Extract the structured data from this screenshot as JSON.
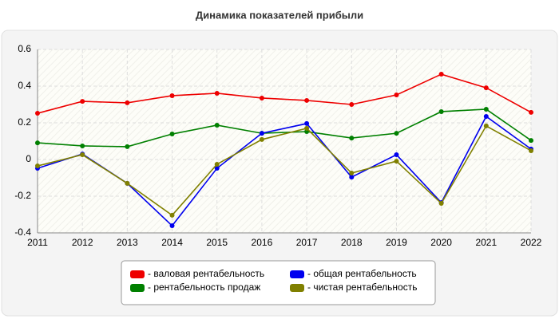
{
  "chart_data": {
    "type": "line",
    "title": "Динамика показателей прибыли",
    "x": [
      2011,
      2012,
      2013,
      2014,
      2015,
      2016,
      2017,
      2018,
      2019,
      2020,
      2021,
      2022
    ],
    "xlim": [
      2011,
      2022
    ],
    "xticks": [
      2011,
      2012,
      2013,
      2014,
      2015,
      2016,
      2017,
      2018,
      2019,
      2020,
      2021,
      2022
    ],
    "ylim": [
      -0.4,
      0.6
    ],
    "yticks": [
      0.6,
      0.4,
      0.2,
      0,
      -0.2,
      -0.4
    ],
    "grid": true,
    "series": [
      {
        "name": "- валовая рентабельность",
        "color": "#ee0000",
        "values": [
          0.252,
          0.317,
          0.309,
          0.348,
          0.361,
          0.335,
          0.322,
          0.3,
          0.352,
          0.465,
          0.391,
          0.257
        ]
      },
      {
        "name": "- рентабельность продаж",
        "color": "#008000",
        "values": [
          0.091,
          0.074,
          0.07,
          0.139,
          0.187,
          0.143,
          0.152,
          0.117,
          0.143,
          0.261,
          0.274,
          0.104
        ]
      },
      {
        "name": "- общая рентабельность",
        "color": "#0000ee",
        "values": [
          -0.048,
          0.03,
          -0.13,
          -0.361,
          -0.048,
          0.143,
          0.196,
          -0.096,
          0.026,
          -0.235,
          0.235,
          0.057
        ]
      },
      {
        "name": "- чистая рентабельность",
        "color": "#808000",
        "values": [
          -0.035,
          0.026,
          -0.13,
          -0.304,
          -0.026,
          0.109,
          0.17,
          -0.074,
          -0.009,
          -0.239,
          0.183,
          0.048
        ]
      }
    ]
  }
}
